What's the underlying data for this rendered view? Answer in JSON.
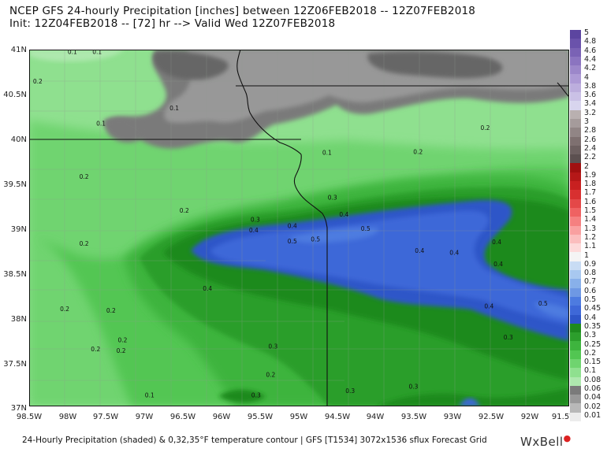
{
  "title_line1": "NCEP GFS 24-hourly Precipitation [inches] between 12Z06FEB2018 -- 12Z07FEB2018",
  "title_line2": "Init: 12Z04FEB2018 -- [72] hr --> Valid Wed 12Z07FEB2018",
  "footer": "24-Hourly Precipitation (shaded) & 0,32,35°F temperature contour | GFS [T1534] 3072x1536 sflux Forecast Grid",
  "brand": "WxBell",
  "map": {
    "lat_labels": [
      "41N",
      "40.5N",
      "40N",
      "39.5N",
      "39N",
      "38.5N",
      "38N",
      "37.5N",
      "37N"
    ],
    "lon_labels": [
      "98.5W",
      "98W",
      "97.5W",
      "97W",
      "96.5W",
      "96W",
      "95.5W",
      "95W",
      "94.5W",
      "94W",
      "93.5W",
      "93W",
      "92.5W",
      "92W",
      "91.5W"
    ],
    "value_labels": [
      {
        "t": "0.1",
        "lon": -98.37,
        "lat": 41.0
      },
      {
        "t": "0.1",
        "lon": -98.0,
        "lat": 40.95
      },
      {
        "t": "0.1",
        "lon": -97.68,
        "lat": 40.95
      },
      {
        "t": "0.2",
        "lon": -98.45,
        "lat": 40.62
      },
      {
        "t": "0.1",
        "lon": -96.68,
        "lat": 40.32
      },
      {
        "t": "0.1",
        "lon": -97.63,
        "lat": 40.15
      },
      {
        "t": "0.2",
        "lon": -92.65,
        "lat": 40.1
      },
      {
        "t": "0.1",
        "lon": -94.7,
        "lat": 39.82
      },
      {
        "t": "0.2",
        "lon": -93.52,
        "lat": 39.83
      },
      {
        "t": "0.2",
        "lon": -97.85,
        "lat": 39.55
      },
      {
        "t": "0.3",
        "lon": -94.63,
        "lat": 39.32
      },
      {
        "t": "0.2",
        "lon": -96.55,
        "lat": 39.17
      },
      {
        "t": "0.3",
        "lon": -95.63,
        "lat": 39.07
      },
      {
        "t": "0.4",
        "lon": -94.48,
        "lat": 39.13
      },
      {
        "t": "0.4",
        "lon": -95.15,
        "lat": 39.0
      },
      {
        "t": "0.4",
        "lon": -95.65,
        "lat": 38.95
      },
      {
        "t": "0.5",
        "lon": -94.2,
        "lat": 38.97
      },
      {
        "t": "0.5",
        "lon": -94.85,
        "lat": 38.85
      },
      {
        "t": "0.5",
        "lon": -95.15,
        "lat": 38.83
      },
      {
        "t": "0.2",
        "lon": -97.85,
        "lat": 38.8
      },
      {
        "t": "0.4",
        "lon": -92.5,
        "lat": 38.82
      },
      {
        "t": "0.4",
        "lon": -93.5,
        "lat": 38.72
      },
      {
        "t": "0.4",
        "lon": -93.05,
        "lat": 38.7
      },
      {
        "t": "0.4",
        "lon": -92.48,
        "lat": 38.57
      },
      {
        "t": "0.4",
        "lon": -96.25,
        "lat": 38.3
      },
      {
        "t": "0.5",
        "lon": -91.9,
        "lat": 38.13
      },
      {
        "t": "0.4",
        "lon": -92.6,
        "lat": 38.1
      },
      {
        "t": "0.2",
        "lon": -98.1,
        "lat": 38.07
      },
      {
        "t": "0.2",
        "lon": -97.5,
        "lat": 38.05
      },
      {
        "t": "0.3",
        "lon": -92.35,
        "lat": 37.75
      },
      {
        "t": "0.2",
        "lon": -97.35,
        "lat": 37.72
      },
      {
        "t": "0.3",
        "lon": -95.4,
        "lat": 37.65
      },
      {
        "t": "0.2",
        "lon": -97.7,
        "lat": 37.62
      },
      {
        "t": "0.2",
        "lon": -97.37,
        "lat": 37.6
      },
      {
        "t": "0.2",
        "lon": -95.43,
        "lat": 37.33
      },
      {
        "t": "0.3",
        "lon": -93.58,
        "lat": 37.2
      },
      {
        "t": "0.3",
        "lon": -94.4,
        "lat": 37.15
      },
      {
        "t": "0.3",
        "lon": -95.62,
        "lat": 37.1
      },
      {
        "t": "0.1",
        "lon": -97.0,
        "lat": 37.1
      }
    ]
  },
  "colorbar": {
    "labels": [
      "5",
      "4.8",
      "4.6",
      "4.4",
      "4.2",
      "4",
      "3.8",
      "3.6",
      "3.4",
      "3.2",
      "3",
      "2.8",
      "2.6",
      "2.4",
      "2.2",
      "2",
      "1.9",
      "1.8",
      "1.7",
      "1.6",
      "1.5",
      "1.4",
      "1.3",
      "1.2",
      "1.1",
      "1",
      "0.9",
      "0.8",
      "0.7",
      "0.6",
      "0.5",
      "0.45",
      "0.4",
      "0.35",
      "0.3",
      "0.25",
      "0.2",
      "0.15",
      "0.1",
      "0.08",
      "0.06",
      "0.04",
      "0.02",
      "0.01"
    ],
    "colors": [
      "#5c45a0",
      "#6a52ab",
      "#7a62b5",
      "#8b74c0",
      "#9c87ca",
      "#ad9ad5",
      "#bcaedd",
      "#cac1e6",
      "#d8d5ee",
      "#b9b0b0",
      "#a59b9b",
      "#918585",
      "#7e7070",
      "#6d6060",
      "#5c5050",
      "#a01010",
      "#b51818",
      "#c82020",
      "#d83030",
      "#e44848",
      "#ef6262",
      "#f58080",
      "#f9a0a0",
      "#fbbebe",
      "#fddada",
      "#f4f4f4",
      "#c8dcf4",
      "#a8c8f0",
      "#88b0ea",
      "#6e98e4",
      "#4d7be0",
      "#3e68d8",
      "#2e56c8",
      "#1e8a1e",
      "#2c9e2c",
      "#3eb43e",
      "#52c652",
      "#6fd46f",
      "#8fe08f",
      "#aee8ae",
      "#7a7a7a",
      "#989898",
      "#b8b8b8",
      "#ececec"
    ]
  }
}
